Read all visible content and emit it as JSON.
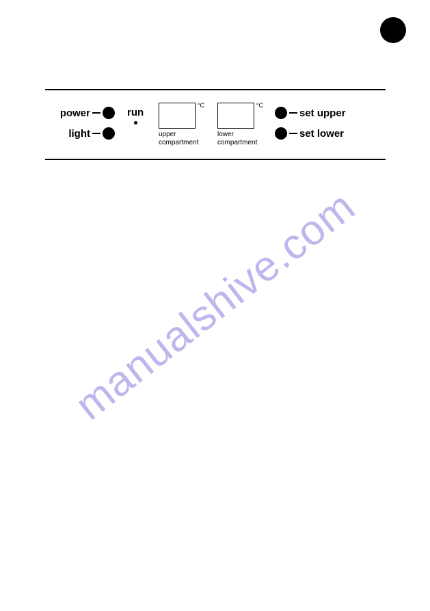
{
  "page_marker": {
    "shape": "circle",
    "color": "#000000"
  },
  "watermark": {
    "text": "manualshive.com",
    "color": "#a9a0e8",
    "angle_deg": -38
  },
  "panel": {
    "rule_color": "#000000",
    "left": {
      "power_label": "power",
      "light_label": "light",
      "button_color": "#000000"
    },
    "run": {
      "label": "run",
      "indicator_color": "#000000"
    },
    "displays": {
      "unit_symbol": "°C",
      "upper": {
        "caption_line1": "upper",
        "caption_line2": "compartment",
        "border_color": "#000000"
      },
      "lower": {
        "caption_line1": "lower",
        "caption_line2": "compartment",
        "border_color": "#000000"
      }
    },
    "right": {
      "set_upper_label": "set upper",
      "set_lower_label": "set lower",
      "button_color": "#000000"
    }
  }
}
